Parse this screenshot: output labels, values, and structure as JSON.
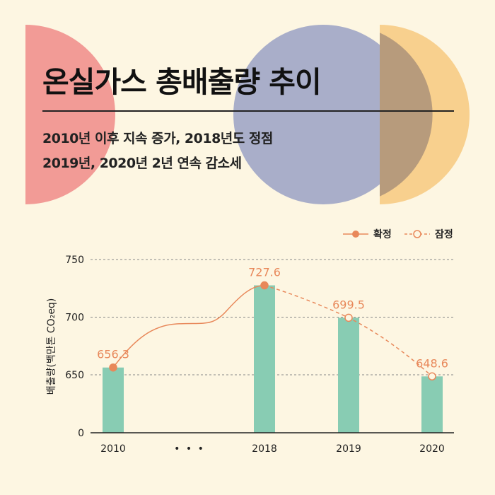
{
  "header": {
    "title": "온실가스 총배출량 추이",
    "subtitle_line1": "2010년 이후 지속 증가, 2018년도 정점",
    "subtitle_line2": "2019년, 2020년 2년 연속 감소세"
  },
  "colors": {
    "background": "#fdf6e2",
    "bar": "#88ccb3",
    "line": "#e8885a",
    "circle_red": "#f29b96",
    "circle_blue": "#a9aec9",
    "circle_yellow": "#f8d08e"
  },
  "chart_data": {
    "type": "bar",
    "title": "",
    "ylabel": "배출량(백만톤 CO₂eq)",
    "xlabel": "",
    "categories": [
      "2010",
      "2018",
      "2019",
      "2020"
    ],
    "axis_break_label": "• • •",
    "y_ticks": [
      0,
      650,
      700,
      750
    ],
    "ylim": [
      0,
      750
    ],
    "axis_broken": true,
    "grid": true,
    "values": [
      656.3,
      727.6,
      699.5,
      648.6
    ],
    "value_labels": [
      "656.3",
      "727.6",
      "699.5",
      "648.6"
    ],
    "series_status": [
      "확정",
      "확정",
      "잠정",
      "잠정"
    ],
    "legend": {
      "position": "top-right",
      "entries": [
        {
          "label": "확정",
          "style": "solid"
        },
        {
          "label": "잠정",
          "style": "dashed"
        }
      ]
    }
  }
}
